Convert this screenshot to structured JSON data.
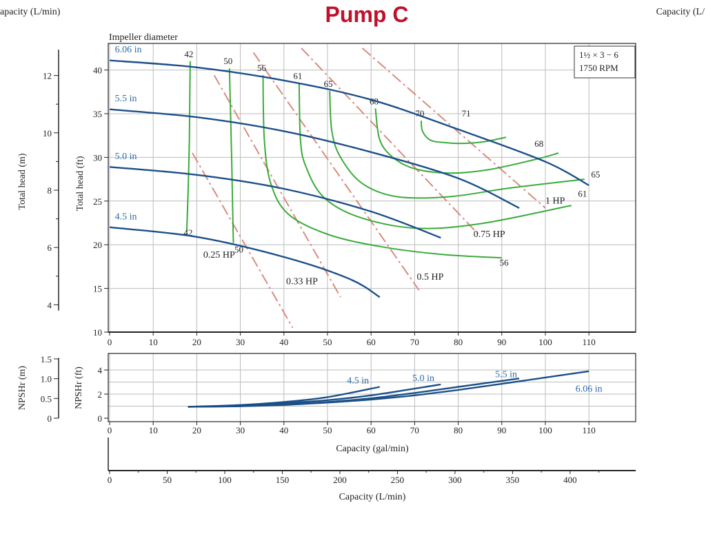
{
  "page_title": "Pump C",
  "corner_labels": {
    "left": "apacity (L/min)",
    "right": "Capacity (L/"
  },
  "colors": {
    "title": "#c0102a",
    "impeller_curve": "#1b4f88",
    "impeller_label": "#2a6aa8",
    "efficiency_curve": "#3aaa3a",
    "hp_line": "#d98a80",
    "grid": "#bbbbbb"
  },
  "chart_data": [
    {
      "type": "line",
      "name": "head-capacity",
      "title": "Impeller diameter",
      "info_box": [
        "1½ × 3 − 6",
        "1750 RPM"
      ],
      "xlabel": "",
      "ylabel_ft": "Total head (ft)",
      "ylabel_m": "Total head (m)",
      "xlim": [
        0,
        110
      ],
      "ylim_ft": [
        10,
        42
      ],
      "xticks": [
        0,
        10,
        20,
        30,
        40,
        50,
        60,
        70,
        80,
        90,
        100,
        110
      ],
      "yticks_ft": [
        10,
        15,
        20,
        25,
        30,
        35,
        40
      ],
      "yticks_m": [
        4,
        6,
        8,
        10,
        12
      ],
      "grid": true,
      "impeller_curves": [
        {
          "label": "6.06 in",
          "x": [
            0,
            20,
            40,
            60,
            80,
            100,
            110
          ],
          "y": [
            41.1,
            40.3,
            38.8,
            36.6,
            33.2,
            29.5,
            26.8
          ]
        },
        {
          "label": "5.5 in",
          "x": [
            0,
            20,
            40,
            60,
            80,
            94
          ],
          "y": [
            35.5,
            34.6,
            33.0,
            30.6,
            27.6,
            24.2
          ]
        },
        {
          "label": "5.0 in",
          "x": [
            0,
            20,
            40,
            60,
            76
          ],
          "y": [
            28.9,
            28.0,
            26.4,
            23.8,
            20.8
          ]
        },
        {
          "label": "4.5 in",
          "x": [
            0,
            20,
            40,
            55,
            62
          ],
          "y": [
            22.0,
            20.9,
            18.6,
            16.1,
            14.0
          ]
        }
      ],
      "efficiency_curves": [
        {
          "label": "42",
          "x": [
            18.5,
            18.4,
            18.3,
            18.0,
            17.7
          ],
          "y": [
            41.0,
            37.0,
            32.0,
            26.0,
            21.5
          ]
        },
        {
          "label": "50",
          "x": [
            27.5,
            27.7,
            28.0,
            28.2,
            28.4
          ],
          "y": [
            40.2,
            36.0,
            30.0,
            25.0,
            20.2
          ]
        },
        {
          "label": "56",
          "x": [
            35.2,
            35.5,
            37,
            41,
            50,
            62,
            76,
            90
          ],
          "y": [
            39.4,
            32,
            27,
            23.5,
            21.2,
            19.8,
            18.9,
            18.5
          ]
        },
        {
          "label": "61",
          "x": [
            43.5,
            43.8,
            45,
            49,
            57,
            70,
            85,
            106
          ],
          "y": [
            38.5,
            32,
            29,
            25.5,
            23.2,
            21.9,
            22.4,
            24.5
          ]
        },
        {
          "label": "65",
          "x": [
            50.5,
            51,
            53,
            58,
            66,
            78,
            92,
            109
          ],
          "y": [
            37.6,
            33,
            30,
            27,
            25.5,
            25.5,
            26.5,
            27.5
          ]
        },
        {
          "label": "68",
          "x": [
            61,
            62,
            65,
            70,
            78,
            87,
            98,
            103
          ],
          "y": [
            35.6,
            32,
            30,
            28.7,
            28.2,
            28.6,
            29.8,
            30.5
          ]
        },
        {
          "label": "70",
          "x": [
            71.5,
            71.8,
            73.5,
            76.5,
            81,
            86,
            91
          ],
          "y": [
            34.2,
            33,
            32,
            31.7,
            31.6,
            31.8,
            32.3
          ]
        }
      ],
      "efficiency_curve_right_labels": [
        {
          "label": "56",
          "x": 89.5,
          "y": 17.6
        },
        {
          "label": "61",
          "x": 107.5,
          "y": 25.5
        },
        {
          "label": "68",
          "x": 97.5,
          "y": 31.2
        },
        {
          "label": "65",
          "x": 110.5,
          "y": 27.7
        },
        {
          "label": "71",
          "x": 80.8,
          "y": 34.7
        }
      ],
      "power_lines": [
        {
          "label": "0.25 HP",
          "x": [
            19,
            42
          ],
          "y": [
            30.5,
            10.5
          ],
          "label_pos": [
            21.5,
            18.5
          ]
        },
        {
          "label": "0.33 HP",
          "x": [
            24,
            53
          ],
          "y": [
            39.4,
            14.0
          ],
          "label_pos": [
            40.5,
            15.5
          ]
        },
        {
          "label": "0.5 HP",
          "x": [
            33,
            71
          ],
          "y": [
            42.0,
            14.8
          ],
          "label_pos": [
            70.5,
            16.0
          ]
        },
        {
          "label": "0.75 HP",
          "x": [
            44,
            85
          ],
          "y": [
            42.5,
            21.0
          ],
          "label_pos": [
            83.5,
            20.9
          ]
        },
        {
          "label": "1 HP",
          "x": [
            58,
            100
          ],
          "y": [
            42.5,
            24.2
          ],
          "label_pos": [
            100.0,
            24.7
          ]
        }
      ]
    },
    {
      "type": "line",
      "name": "npsh",
      "ylabel_ft": "NPSHr (ft)",
      "ylabel_m": "NPSHr (m)",
      "xlabel": "Capacity (gal/min)",
      "xlim": [
        0,
        110
      ],
      "ylim_ft": [
        0,
        5
      ],
      "xticks": [
        0,
        10,
        20,
        30,
        40,
        50,
        60,
        70,
        80,
        90,
        100,
        110
      ],
      "yticks_ft": [
        0,
        2,
        4
      ],
      "yticks_m": [
        "0",
        "0.5",
        "1.0",
        "1.5"
      ],
      "series": [
        {
          "name": "4.5 in",
          "x": [
            18,
            30,
            40,
            50,
            62
          ],
          "y": [
            0.95,
            1.1,
            1.35,
            1.75,
            2.6
          ]
        },
        {
          "name": "5.0 in",
          "x": [
            18,
            30,
            40,
            50,
            60,
            76
          ],
          "y": [
            0.95,
            1.05,
            1.25,
            1.5,
            1.9,
            2.8
          ]
        },
        {
          "name": "5.5 in",
          "x": [
            18,
            30,
            40,
            50,
            60,
            70,
            80,
            94
          ],
          "y": [
            0.95,
            1.0,
            1.15,
            1.35,
            1.65,
            2.1,
            2.6,
            3.3
          ]
        },
        {
          "name": "6.06 in",
          "x": [
            18,
            30,
            40,
            50,
            60,
            70,
            80,
            90,
            110
          ],
          "y": [
            0.95,
            1.0,
            1.1,
            1.3,
            1.55,
            1.9,
            2.35,
            2.85,
            3.9
          ]
        }
      ]
    },
    {
      "type": "axis",
      "name": "capacity-lpm",
      "xlabel": "Capacity (L/min)",
      "xlim": [
        0,
        416.4
      ],
      "xticks": [
        0,
        50,
        100,
        150,
        200,
        250,
        300,
        350,
        400
      ]
    }
  ]
}
